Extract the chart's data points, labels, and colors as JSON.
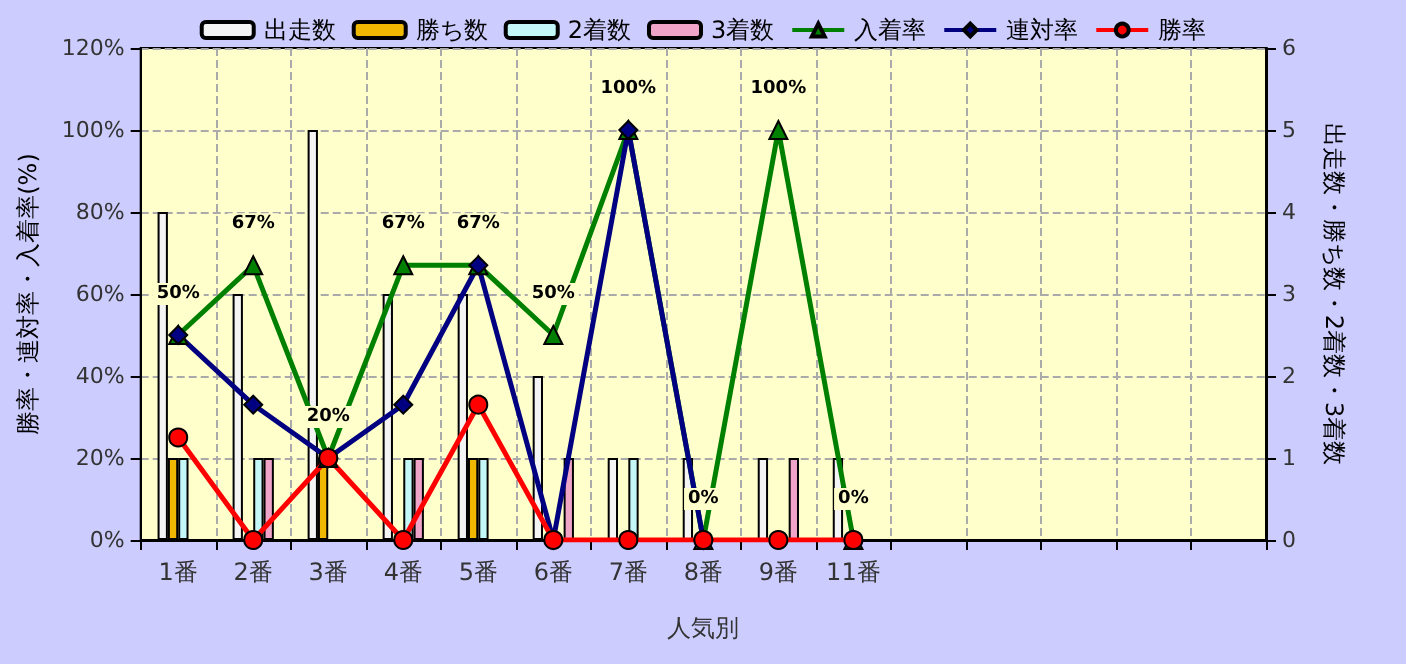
{
  "chart_data": {
    "type": "bar",
    "xlabel": "人気別",
    "ylabel": "勝率・連対率・入着率(%)",
    "y2label": "出走数・勝ち数・2着数・3着数",
    "categories": [
      "1番",
      "2番",
      "3番",
      "4番",
      "5番",
      "6番",
      "7番",
      "8番",
      "9番",
      "11番",
      null,
      null,
      null,
      null,
      null
    ],
    "series": [
      {
        "name": "出走数",
        "axis": "y2",
        "color": "#f4f4f4",
        "values": [
          4,
          3,
          5,
          3,
          3,
          2,
          1,
          1,
          1,
          1,
          null,
          null,
          null,
          null,
          null
        ]
      },
      {
        "name": "勝ち数",
        "axis": "y2",
        "color": "#f0b800",
        "values": [
          1,
          0,
          1,
          0,
          1,
          0,
          0,
          0,
          0,
          0,
          null,
          null,
          null,
          null,
          null
        ]
      },
      {
        "name": "2着数",
        "axis": "y2",
        "color": "#c4f8f8",
        "values": [
          1,
          1,
          0,
          1,
          1,
          0,
          1,
          0,
          0,
          0,
          null,
          null,
          null,
          null,
          null
        ]
      },
      {
        "name": "3着数",
        "axis": "y2",
        "color": "#f0a4c8",
        "values": [
          0,
          1,
          0,
          1,
          0,
          1,
          0,
          0,
          1,
          0,
          null,
          null,
          null,
          null,
          null
        ]
      },
      {
        "name": "入着率",
        "type": "line",
        "marker": "triangle",
        "color": "#008000",
        "values": [
          50,
          67,
          20,
          67,
          67,
          50,
          100,
          0,
          100,
          0,
          null,
          null,
          null,
          null,
          null
        ],
        "value_labels": [
          "50%",
          "67%",
          "20%",
          "67%",
          "67%",
          "50%",
          "100%",
          "0%",
          "100%",
          "0%",
          null,
          null,
          null,
          null,
          null
        ]
      },
      {
        "name": "連対率",
        "type": "line",
        "marker": "diamond",
        "color": "#000080",
        "values": [
          50,
          33,
          20,
          33,
          67,
          0,
          100,
          0,
          null,
          null,
          null,
          null,
          null,
          null,
          null
        ]
      },
      {
        "name": "勝率",
        "type": "line",
        "marker": "circle",
        "color": "#ff0000",
        "values": [
          25,
          0,
          20,
          0,
          33,
          0,
          0,
          0,
          0,
          0,
          null,
          null,
          null,
          null,
          null
        ]
      }
    ],
    "ylim": [
      0,
      120
    ],
    "yticks": [
      {
        "value": 0,
        "label": "0%"
      },
      {
        "value": 20,
        "label": "20%"
      },
      {
        "value": 40,
        "label": "40%"
      },
      {
        "value": 60,
        "label": "60%"
      },
      {
        "value": 80,
        "label": "80%"
      },
      {
        "value": 100,
        "label": "100%"
      },
      {
        "value": 120,
        "label": "120%"
      }
    ],
    "y2lim": [
      0,
      6
    ],
    "y2ticks": [
      0,
      1,
      2,
      3,
      4,
      5,
      6
    ],
    "grid": true,
    "legend": "top"
  }
}
